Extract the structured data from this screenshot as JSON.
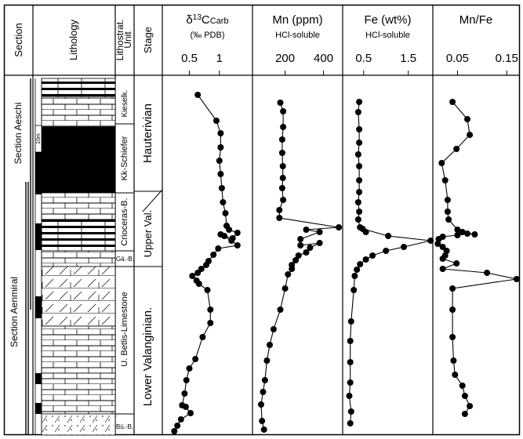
{
  "columns": {
    "section": "Section",
    "lithology": "Lithology",
    "lithostrat_line1": "Lithostrat.",
    "lithostrat_line2": "Unit",
    "stage": "Stage"
  },
  "sections": {
    "aeschi": "Section Aeschi",
    "aenmiral": "Section Aenmiral"
  },
  "scale_bar_label": "10m",
  "units": {
    "kieselk": "Kieselk.",
    "kk_schiefer": "Kk-Schiefer",
    "crioceras": "Crioceras-B.",
    "ga": "Gä.-B.",
    "betlis": "U. Betlis-Limestone",
    "bu": "Bü.-B."
  },
  "stages": {
    "hauterivian": "Hauterivian",
    "upper_val": "Upper Val.",
    "lower_val": "Lower Valanginian."
  },
  "chart_data": [
    {
      "type": "line",
      "title_parts": [
        "δ",
        "13",
        "C",
        "Carb"
      ],
      "subtitle": "(‰ PDB)",
      "xlim": [
        0.05,
        1.55
      ],
      "xticks": [
        0.5,
        1
      ],
      "x": [
        0.64,
        0.95,
        1.02,
        1.02,
        1.0,
        1.02,
        1.04,
        1.06,
        1.1,
        1.12,
        1.16,
        1.3,
        1.22,
        1.08,
        1.02,
        1.2,
        1.3,
        0.98,
        0.9,
        0.82,
        0.78,
        0.7,
        0.64,
        0.55,
        0.62,
        0.66,
        0.8,
        0.85,
        0.85,
        0.72,
        0.6,
        0.5,
        0.45,
        0.42,
        0.38,
        0.44,
        0.52,
        0.36,
        0.3,
        0.25
      ],
      "depth": [
        121,
        154,
        170,
        188,
        205,
        222,
        240,
        258,
        272,
        288,
        293,
        297,
        304,
        301,
        299,
        307,
        313,
        317,
        325,
        333,
        338,
        343,
        348,
        352,
        358,
        362,
        370,
        395,
        412,
        430,
        458,
        470,
        485,
        502,
        517,
        519,
        527,
        535,
        543,
        550
      ]
    },
    {
      "type": "line",
      "title": "Mn (ppm)",
      "subtitle": "HCl-soluble",
      "xlim": [
        30,
        500
      ],
      "xticks": [
        200,
        400
      ],
      "x": [
        175,
        190,
        190,
        185,
        185,
        188,
        188,
        185,
        190,
        170,
        170,
        480,
        310,
        380,
        280,
        280,
        380,
        330,
        310,
        270,
        255,
        235,
        235,
        215,
        200,
        175,
        140,
        120,
        105,
        95,
        85,
        75,
        80,
        90
      ],
      "depth": [
        131,
        142,
        162,
        178,
        195,
        212,
        227,
        240,
        255,
        268,
        278,
        290,
        293,
        296,
        305,
        313,
        310,
        316,
        322,
        326,
        332,
        338,
        343,
        350,
        368,
        395,
        420,
        440,
        460,
        485,
        500,
        516,
        537,
        548
      ]
    },
    {
      "type": "line",
      "title": "Fe (wt%)",
      "subtitle": "HCl-soluble",
      "xlim": [
        0.03,
        2.05
      ],
      "xticks": [
        0.5,
        1.5
      ],
      "x": [
        0.4,
        0.38,
        0.4,
        0.4,
        0.38,
        0.4,
        0.4,
        0.4,
        0.38,
        0.4,
        0.38,
        0.42,
        0.55,
        0.48,
        1.05,
        2.0,
        1.4,
        1.0,
        0.7,
        0.55,
        0.42,
        0.35,
        0.3,
        0.28,
        0.22,
        0.2,
        0.2,
        0.2,
        0.18,
        0.22,
        0.2
      ],
      "depth": [
        130,
        143,
        165,
        182,
        197,
        212,
        230,
        245,
        258,
        270,
        280,
        290,
        296,
        292,
        301,
        307,
        315,
        320,
        326,
        331,
        337,
        344,
        352,
        370,
        410,
        435,
        462,
        488,
        505,
        525,
        540
      ]
    },
    {
      "type": "line",
      "title": "Mn/Fe",
      "xlim": [
        0.0,
        0.175
      ],
      "xticks": [
        0.05,
        0.15
      ],
      "x": [
        0.04,
        0.07,
        0.075,
        0.048,
        0.018,
        0.025,
        0.03,
        0.03,
        0.032,
        0.05,
        0.06,
        0.085,
        0.07,
        0.05,
        0.02,
        0.012,
        0.01,
        0.02,
        0.028,
        0.025,
        0.02,
        0.048,
        0.02,
        0.11,
        0.17,
        0.04,
        0.04,
        0.04,
        0.042,
        0.045,
        0.06,
        0.065,
        0.075,
        0.065
      ],
      "depth": [
        130,
        152,
        172,
        190,
        208,
        230,
        255,
        270,
        280,
        293,
        296,
        299,
        298,
        300,
        302,
        305,
        311,
        315,
        320,
        326,
        330,
        336,
        343,
        348,
        356,
        368,
        395,
        430,
        460,
        478,
        492,
        505,
        518,
        528
      ]
    }
  ]
}
